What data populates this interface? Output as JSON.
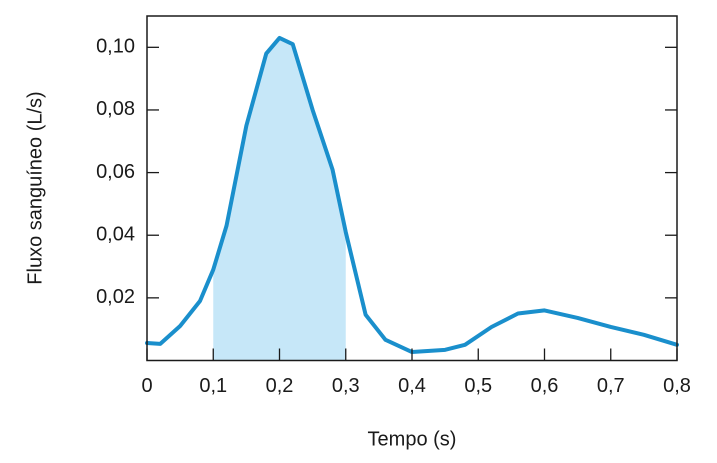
{
  "chart_data": {
    "type": "line",
    "x_label": "Tempo (s)",
    "y_label": "Fluxo sanguíneo (L/s)",
    "x": [
      0,
      0.02,
      0.05,
      0.08,
      0.1,
      0.12,
      0.15,
      0.18,
      0.2,
      0.22,
      0.25,
      0.28,
      0.3,
      0.33,
      0.36,
      0.4,
      0.45,
      0.48,
      0.52,
      0.56,
      0.6,
      0.65,
      0.7,
      0.75,
      0.8
    ],
    "series": [
      {
        "name": "Fluxo",
        "color": "#1a8fcc",
        "values": [
          0.0056,
          0.0053,
          0.011,
          0.019,
          0.029,
          0.043,
          0.075,
          0.098,
          0.103,
          0.101,
          0.08,
          0.061,
          0.041,
          0.0146,
          0.0066,
          0.0027,
          0.0034,
          0.005,
          0.0107,
          0.015,
          0.016,
          0.0136,
          0.0107,
          0.0082,
          0.005
        ]
      }
    ],
    "shaded_range": [
      0.1,
      0.3
    ],
    "shade_color": "#c6e7f8",
    "xlim": [
      0,
      0.8
    ],
    "ylim": [
      0,
      0.11
    ],
    "xticks": [
      0,
      {
        "value": 0.1,
        "label": "0,1"
      },
      {
        "value": 0.2,
        "label": "0,2"
      },
      {
        "value": 0.3,
        "label": "0,3"
      },
      {
        "value": 0.4,
        "label": "0,4"
      },
      {
        "value": 0.5,
        "label": "0,5"
      },
      {
        "value": 0.6,
        "label": "0,6"
      },
      {
        "value": 0.7,
        "label": "0,7"
      },
      {
        "value": 0.8,
        "label": "0,8"
      }
    ],
    "yticks": [
      {
        "value": 0.02,
        "label": "0,02"
      },
      {
        "value": 0.04,
        "label": "0,04"
      },
      {
        "value": 0.06,
        "label": "0,06"
      },
      {
        "value": 0.08,
        "label": "0,08"
      },
      {
        "value": 0.1,
        "label": "0,10"
      }
    ]
  }
}
